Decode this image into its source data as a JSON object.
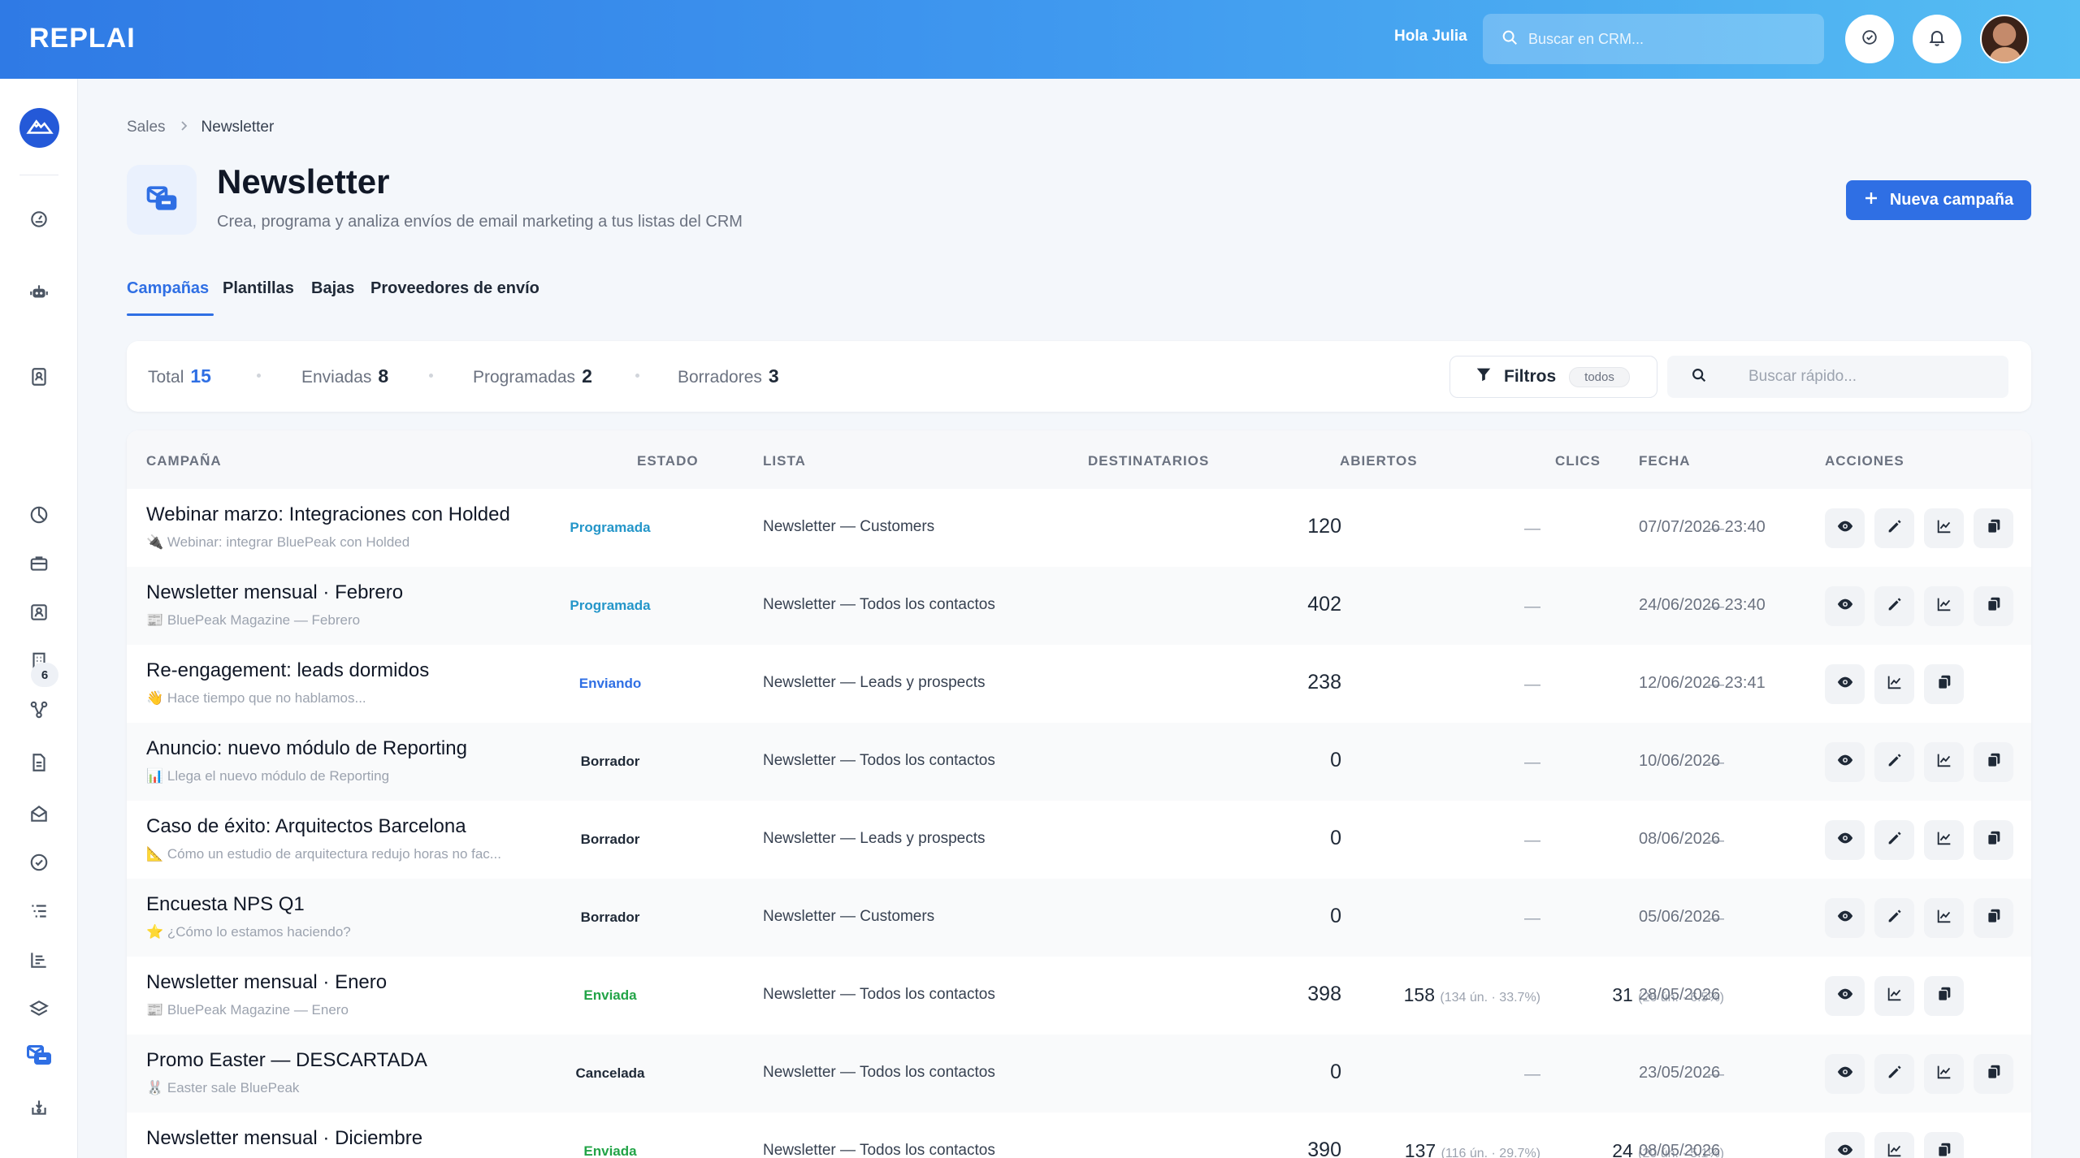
{
  "header": {
    "logo": "REPLAI",
    "greeting": "Hola Julia",
    "search_placeholder": "Buscar en CRM..."
  },
  "sidebar": {
    "badge": "6"
  },
  "breadcrumb": {
    "parent": "Sales",
    "current": "Newsletter"
  },
  "page": {
    "title": "Newsletter",
    "subtitle": "Crea, programa y analiza envíos de email marketing a tus listas del CRM",
    "new_button": "Nueva campaña"
  },
  "tabs": [
    "Campañas",
    "Plantillas",
    "Bajas",
    "Proveedores de envío"
  ],
  "stats": {
    "total_label": "Total",
    "total": "15",
    "sent_label": "Enviadas",
    "sent": "8",
    "scheduled_label": "Programadas",
    "scheduled": "2",
    "drafts_label": "Borradores",
    "drafts": "3",
    "filter_label": "Filtros",
    "filter_value": "todos",
    "quick_search_placeholder": "Buscar rápido..."
  },
  "table": {
    "headers": [
      "CAMPAÑA",
      "ESTADO",
      "LISTA",
      "DESTINATARIOS",
      "ABIERTOS",
      "CLICS",
      "FECHA",
      "ACCIONES"
    ],
    "rows": [
      {
        "title": "Webinar marzo: Integraciones con Holded",
        "subject": "🔌 Webinar: integrar BluePeak con Holded",
        "status": "Programada",
        "list": "Newsletter — Customers",
        "recipients": "120",
        "opens": "—",
        "opens_detail": "",
        "clicks": "—",
        "clicks_detail": "",
        "date": "07/07/2026 23:40"
      },
      {
        "title": "Newsletter mensual · Febrero",
        "subject": "📰 BluePeak Magazine — Febrero",
        "status": "Programada",
        "list": "Newsletter — Todos los contactos",
        "recipients": "402",
        "opens": "—",
        "opens_detail": "",
        "clicks": "—",
        "clicks_detail": "",
        "date": "24/06/2026 23:40"
      },
      {
        "title": "Re-engagement: leads dormidos",
        "subject": "👋 Hace tiempo que no hablamos...",
        "status": "Enviando",
        "list": "Newsletter — Leads y prospects",
        "recipients": "238",
        "opens": "—",
        "opens_detail": "",
        "clicks": "—",
        "clicks_detail": "",
        "date": "12/06/2026 23:41"
      },
      {
        "title": "Anuncio: nuevo módulo de Reporting",
        "subject": "📊 Llega el nuevo módulo de Reporting",
        "status": "Borrador",
        "list": "Newsletter — Todos los contactos",
        "recipients": "0",
        "opens": "—",
        "opens_detail": "",
        "clicks": "—",
        "clicks_detail": "",
        "date": "10/06/2026"
      },
      {
        "title": "Caso de éxito: Arquitectos Barcelona",
        "subject": "📐 Cómo un estudio de arquitectura redujo horas no fac...",
        "status": "Borrador",
        "list": "Newsletter — Leads y prospects",
        "recipients": "0",
        "opens": "—",
        "opens_detail": "",
        "clicks": "—",
        "clicks_detail": "",
        "date": "08/06/2026"
      },
      {
        "title": "Encuesta NPS Q1",
        "subject": "⭐ ¿Cómo lo estamos haciendo?",
        "status": "Borrador",
        "list": "Newsletter — Customers",
        "recipients": "0",
        "opens": "—",
        "opens_detail": "",
        "clicks": "—",
        "clicks_detail": "",
        "date": "05/06/2026"
      },
      {
        "title": "Newsletter mensual · Enero",
        "subject": "📰 BluePeak Magazine — Enero",
        "status": "Enviada",
        "list": "Newsletter — Todos los contactos",
        "recipients": "398",
        "opens": "158",
        "opens_detail": "(134 ún. · 33.7%)",
        "clicks": "31",
        "clicks_detail": "(26 ún. · 6.5%)",
        "date": "28/05/2026"
      },
      {
        "title": "Promo Easter — DESCARTADA",
        "subject": "🐰 Easter sale BluePeak",
        "status": "Cancelada",
        "list": "Newsletter — Todos los contactos",
        "recipients": "0",
        "opens": "—",
        "opens_detail": "",
        "clicks": "—",
        "clicks_detail": "",
        "date": "23/05/2026"
      },
      {
        "title": "Newsletter mensual · Diciembre",
        "subject": "",
        "status": "Enviada",
        "list": "Newsletter — Todos los contactos",
        "recipients": "390",
        "opens": "137",
        "opens_detail": "(116 ún. · 29.7%)",
        "clicks": "24",
        "clicks_detail": "(20 ún. · 5.1%)",
        "date": "08/05/2026"
      }
    ]
  },
  "status_colors": {
    "Programada": "#2496c9",
    "Enviando": "#2f6fe4",
    "Borrador": "#1f2937",
    "Enviada": "#22a447",
    "Cancelada": "#1f2937"
  },
  "accent": "#2f6fe4"
}
